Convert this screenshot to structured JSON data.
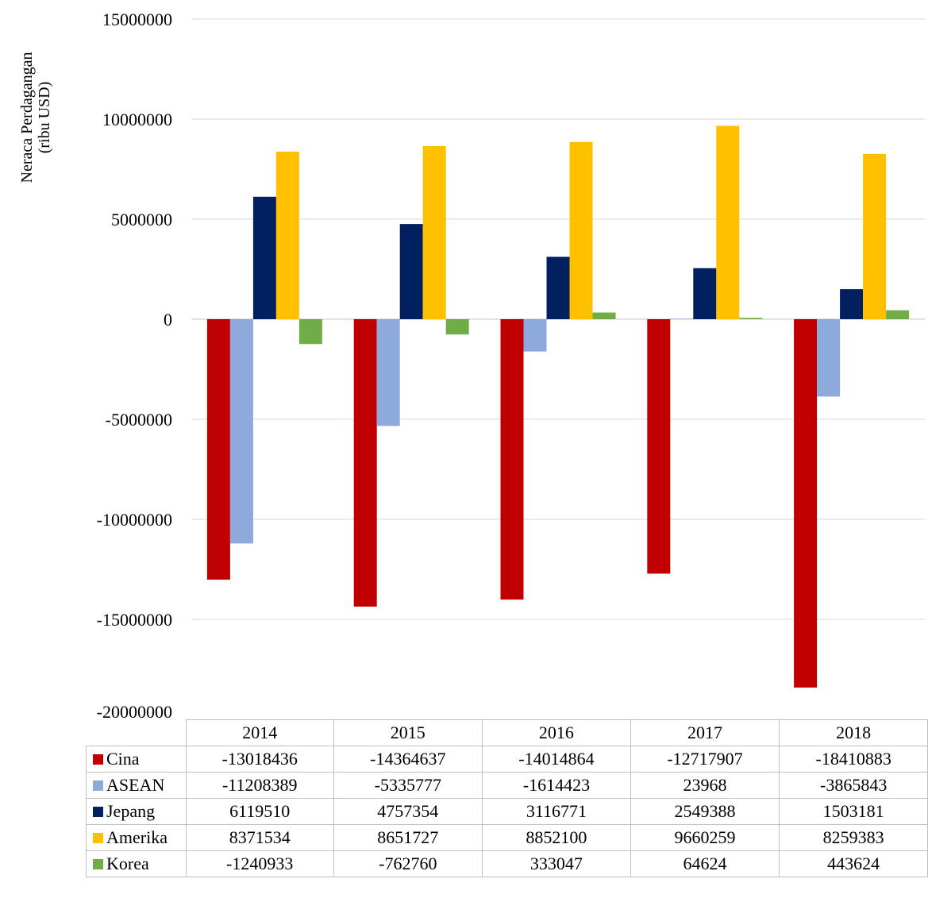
{
  "chart_data": {
    "type": "bar",
    "title": "",
    "ylabel": "Neraca Perdagangan (ribu USD)",
    "ylabel_lines": [
      "Neraca Perdagangan",
      "(ribu USD)"
    ],
    "xlabel": "",
    "ylim": [
      -20000000,
      15000000
    ],
    "yticks": [
      "15000000",
      "10000000",
      "5000000",
      "0",
      "-5000000",
      "-10000000",
      "-15000000",
      "-20000000"
    ],
    "ytick_values": [
      15000000,
      10000000,
      5000000,
      0,
      -5000000,
      -10000000,
      -15000000,
      -20000000
    ],
    "grid": true,
    "legend": "data-table",
    "categories": [
      "2014",
      "2015",
      "2016",
      "2017",
      "2018"
    ],
    "series": [
      {
        "name": "Cina",
        "color": "#C00000",
        "values": [
          -13018436,
          -14364637,
          -14014864,
          -12717907,
          -18410883
        ],
        "labels": [
          "-13018436",
          "-14364637",
          "-14014864",
          "-12717907",
          "-18410883"
        ]
      },
      {
        "name": "ASEAN",
        "color": "#8EA9DB",
        "values": [
          -11208389,
          -5335777,
          -1614423,
          23968,
          -3865843
        ],
        "labels": [
          "-11208389",
          "-5335777",
          "-1614423",
          "23968",
          "-3865843"
        ]
      },
      {
        "name": "Jepang",
        "color": "#002060",
        "values": [
          6119510,
          4757354,
          3116771,
          2549388,
          1503181
        ],
        "labels": [
          "6119510",
          "4757354",
          "3116771",
          "2549388",
          "1503181"
        ]
      },
      {
        "name": "Amerika",
        "color": "#FFC000",
        "values": [
          8371534,
          8651727,
          8852100,
          9660259,
          8259383
        ],
        "labels": [
          "8371534",
          "8651727",
          "8852100",
          "9660259",
          "8259383"
        ]
      },
      {
        "name": "Korea",
        "color": "#70AD47",
        "values": [
          -1240933,
          -762760,
          333047,
          64624,
          443624
        ],
        "labels": [
          "-1240933",
          "-762760",
          "333047",
          "64624",
          "443624"
        ]
      }
    ]
  }
}
